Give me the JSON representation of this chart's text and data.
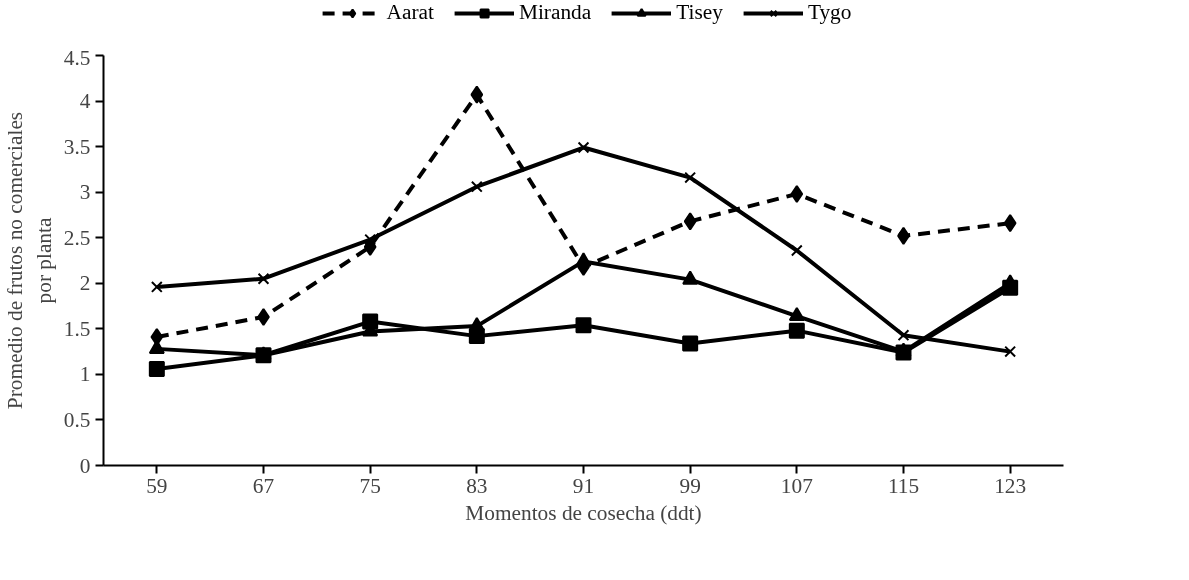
{
  "chart_data": {
    "type": "line",
    "xlabel": "Momentos de cosecha (ddt)",
    "ylabel": "Promedio de frutos no comerciales\npor planta",
    "categories": [
      "59",
      "67",
      "75",
      "83",
      "91",
      "99",
      "107",
      "115",
      "123"
    ],
    "ylim": [
      0,
      4.5
    ],
    "yticks": [
      0,
      0.5,
      1,
      1.5,
      2,
      2.5,
      3,
      3.5,
      4,
      4.5
    ],
    "grid": false,
    "legend": "top",
    "series": [
      {
        "name": "Aarat",
        "color": "#000000",
        "marker": "diamond",
        "line_style": "dashed",
        "values": [
          1.41,
          1.63,
          2.4,
          4.07,
          2.18,
          2.68,
          2.98,
          2.52,
          2.66
        ]
      },
      {
        "name": "Miranda",
        "color": "#000000",
        "marker": "square",
        "line_style": "solid",
        "values": [
          1.06,
          1.21,
          1.58,
          1.42,
          1.54,
          1.34,
          1.48,
          1.24,
          1.95
        ]
      },
      {
        "name": "Tisey",
        "color": "#000000",
        "marker": "triangle",
        "line_style": "solid",
        "values": [
          1.28,
          1.21,
          1.47,
          1.53,
          2.24,
          2.04,
          1.64,
          1.25,
          2.0
        ]
      },
      {
        "name": "Tygo",
        "color": "#000000",
        "marker": "cross",
        "line_style": "solid",
        "values": [
          1.96,
          2.05,
          2.48,
          3.06,
          3.49,
          3.16,
          2.36,
          1.43,
          1.25
        ]
      }
    ]
  }
}
